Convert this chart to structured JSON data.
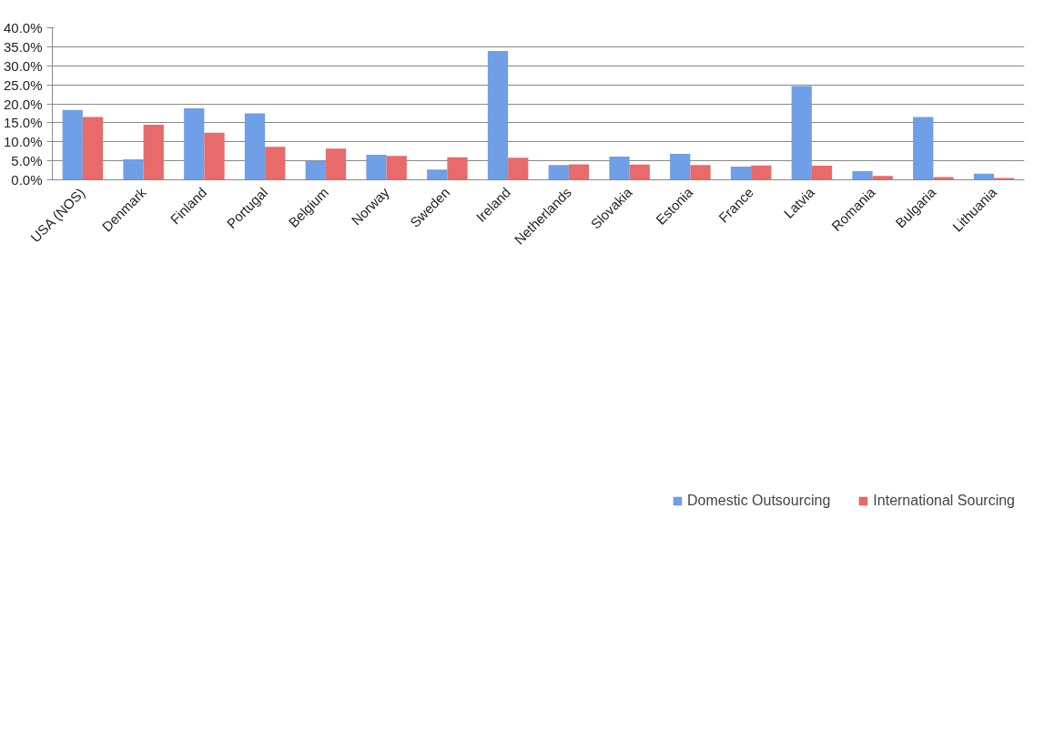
{
  "chart_data": {
    "type": "bar",
    "categories": [
      "USA (NOS)",
      "Denmark",
      "Finland",
      "Portugal",
      "Belgium",
      "Norway",
      "Sweden",
      "Ireland",
      "Netherlands",
      "Slovakia",
      "Estonia",
      "France",
      "Latvia",
      "Romania",
      "Bulgaria",
      "Lithuania"
    ],
    "series": [
      {
        "name": "Domestic Outsourcing",
        "color": "#6f9fe6",
        "values": [
          18.4,
          5.4,
          18.8,
          17.5,
          5.0,
          6.6,
          2.7,
          33.9,
          3.9,
          6.1,
          6.8,
          3.5,
          24.7,
          2.3,
          16.5,
          1.6
        ]
      },
      {
        "name": "International Sourcing",
        "color": "#e86a6a",
        "values": [
          16.5,
          14.5,
          12.4,
          8.7,
          8.2,
          6.3,
          5.9,
          5.8,
          4.1,
          4.0,
          3.9,
          3.8,
          3.7,
          1.0,
          0.7,
          0.5
        ]
      }
    ],
    "ylim": [
      0,
      40
    ],
    "yticks": [
      {
        "value": 0,
        "label": "0.0%"
      },
      {
        "value": 5,
        "label": "5.0%"
      },
      {
        "value": 10,
        "label": "10.0%"
      },
      {
        "value": 15,
        "label": "15.0%"
      },
      {
        "value": 20,
        "label": "20.0%"
      },
      {
        "value": 25,
        "label": "25.0%"
      },
      {
        "value": 30,
        "label": "30.0%"
      },
      {
        "value": 35,
        "label": "35.0%"
      },
      {
        "value": 40,
        "label": "40.0%"
      }
    ],
    "grid": "y",
    "legend": "bottom"
  }
}
